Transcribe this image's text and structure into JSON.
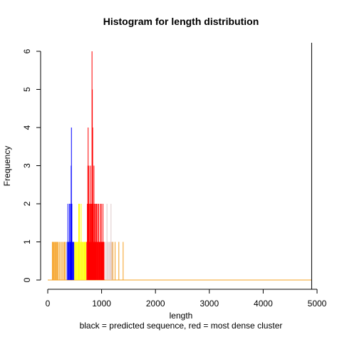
{
  "chart_data": {
    "type": "bar",
    "title": "Histogram for length distribution",
    "xlabel": "length",
    "subtitle": "black = predicted sequence, red = most dense cluster",
    "ylabel": "Frequency",
    "xlim": [
      0,
      5000
    ],
    "ylim": [
      0,
      6
    ],
    "x_ticks": [
      "0",
      "1000",
      "2000",
      "3000",
      "4000",
      "5000"
    ],
    "y_ticks": [
      "0",
      "1",
      "2",
      "3",
      "4",
      "5",
      "6"
    ],
    "grid": false,
    "predicted_sequence_x": 4900,
    "series": [
      {
        "color": "#f5a020",
        "bars": [
          {
            "x": 85,
            "y": 1
          },
          {
            "x": 100,
            "y": 1
          },
          {
            "x": 115,
            "y": 1
          },
          {
            "x": 130,
            "y": 1
          },
          {
            "x": 145,
            "y": 1
          },
          {
            "x": 160,
            "y": 1
          },
          {
            "x": 175,
            "y": 1
          },
          {
            "x": 190,
            "y": 1
          },
          {
            "x": 215,
            "y": 1
          },
          {
            "x": 240,
            "y": 1
          },
          {
            "x": 265,
            "y": 1
          },
          {
            "x": 290,
            "y": 1
          },
          {
            "x": 310,
            "y": 1
          },
          {
            "x": 330,
            "y": 1
          },
          {
            "x": 1180,
            "y": 1
          },
          {
            "x": 1210,
            "y": 1
          },
          {
            "x": 1250,
            "y": 1
          },
          {
            "x": 1320,
            "y": 1
          },
          {
            "x": 1400,
            "y": 1
          }
        ],
        "baseline_to": 4900
      },
      {
        "color": "#0000ff",
        "bars": [
          {
            "x": 360,
            "y": 1
          },
          {
            "x": 375,
            "y": 2
          },
          {
            "x": 390,
            "y": 1
          },
          {
            "x": 405,
            "y": 2
          },
          {
            "x": 415,
            "y": 1
          },
          {
            "x": 425,
            "y": 2
          },
          {
            "x": 435,
            "y": 3
          },
          {
            "x": 440,
            "y": 4
          },
          {
            "x": 448,
            "y": 2
          },
          {
            "x": 455,
            "y": 1
          },
          {
            "x": 470,
            "y": 1
          },
          {
            "x": 485,
            "y": 1
          }
        ]
      },
      {
        "color": "#ffff00",
        "bars": [
          {
            "x": 500,
            "y": 1
          },
          {
            "x": 515,
            "y": 1
          },
          {
            "x": 530,
            "y": 1
          },
          {
            "x": 545,
            "y": 1
          },
          {
            "x": 560,
            "y": 1
          },
          {
            "x": 575,
            "y": 2
          },
          {
            "x": 590,
            "y": 2
          },
          {
            "x": 605,
            "y": 1
          },
          {
            "x": 620,
            "y": 2
          },
          {
            "x": 635,
            "y": 1
          },
          {
            "x": 650,
            "y": 1
          },
          {
            "x": 665,
            "y": 1
          },
          {
            "x": 680,
            "y": 1
          },
          {
            "x": 695,
            "y": 1
          },
          {
            "x": 710,
            "y": 1
          }
        ]
      },
      {
        "color": "#ff0000",
        "bars": [
          {
            "x": 725,
            "y": 1
          },
          {
            "x": 735,
            "y": 2
          },
          {
            "x": 745,
            "y": 3
          },
          {
            "x": 750,
            "y": 4
          },
          {
            "x": 758,
            "y": 2
          },
          {
            "x": 765,
            "y": 3
          },
          {
            "x": 772,
            "y": 1
          },
          {
            "x": 780,
            "y": 2
          },
          {
            "x": 788,
            "y": 1
          },
          {
            "x": 795,
            "y": 3
          },
          {
            "x": 802,
            "y": 2
          },
          {
            "x": 810,
            "y": 1
          },
          {
            "x": 815,
            "y": 2
          },
          {
            "x": 822,
            "y": 6
          },
          {
            "x": 828,
            "y": 5
          },
          {
            "x": 835,
            "y": 4
          },
          {
            "x": 842,
            "y": 2
          },
          {
            "x": 850,
            "y": 1
          },
          {
            "x": 858,
            "y": 3
          },
          {
            "x": 865,
            "y": 1
          },
          {
            "x": 872,
            "y": 2
          },
          {
            "x": 880,
            "y": 1
          },
          {
            "x": 888,
            "y": 2
          },
          {
            "x": 895,
            "y": 1
          },
          {
            "x": 905,
            "y": 2
          },
          {
            "x": 915,
            "y": 1
          },
          {
            "x": 925,
            "y": 2
          },
          {
            "x": 935,
            "y": 1
          },
          {
            "x": 945,
            "y": 2
          },
          {
            "x": 955,
            "y": 1
          },
          {
            "x": 965,
            "y": 1
          },
          {
            "x": 975,
            "y": 2
          },
          {
            "x": 985,
            "y": 1
          },
          {
            "x": 995,
            "y": 2
          },
          {
            "x": 1005,
            "y": 1
          },
          {
            "x": 1015,
            "y": 1
          },
          {
            "x": 1025,
            "y": 2
          },
          {
            "x": 1035,
            "y": 1
          },
          {
            "x": 1045,
            "y": 1
          }
        ]
      },
      {
        "color": "#e0c8c8",
        "bars": [
          {
            "x": 1080,
            "y": 1
          },
          {
            "x": 1100,
            "y": 2
          },
          {
            "x": 1120,
            "y": 1
          },
          {
            "x": 1140,
            "y": 1
          },
          {
            "x": 1160,
            "y": 1
          },
          {
            "x": 1175,
            "y": 2
          },
          {
            "x": 1195,
            "y": 1
          }
        ]
      }
    ]
  }
}
